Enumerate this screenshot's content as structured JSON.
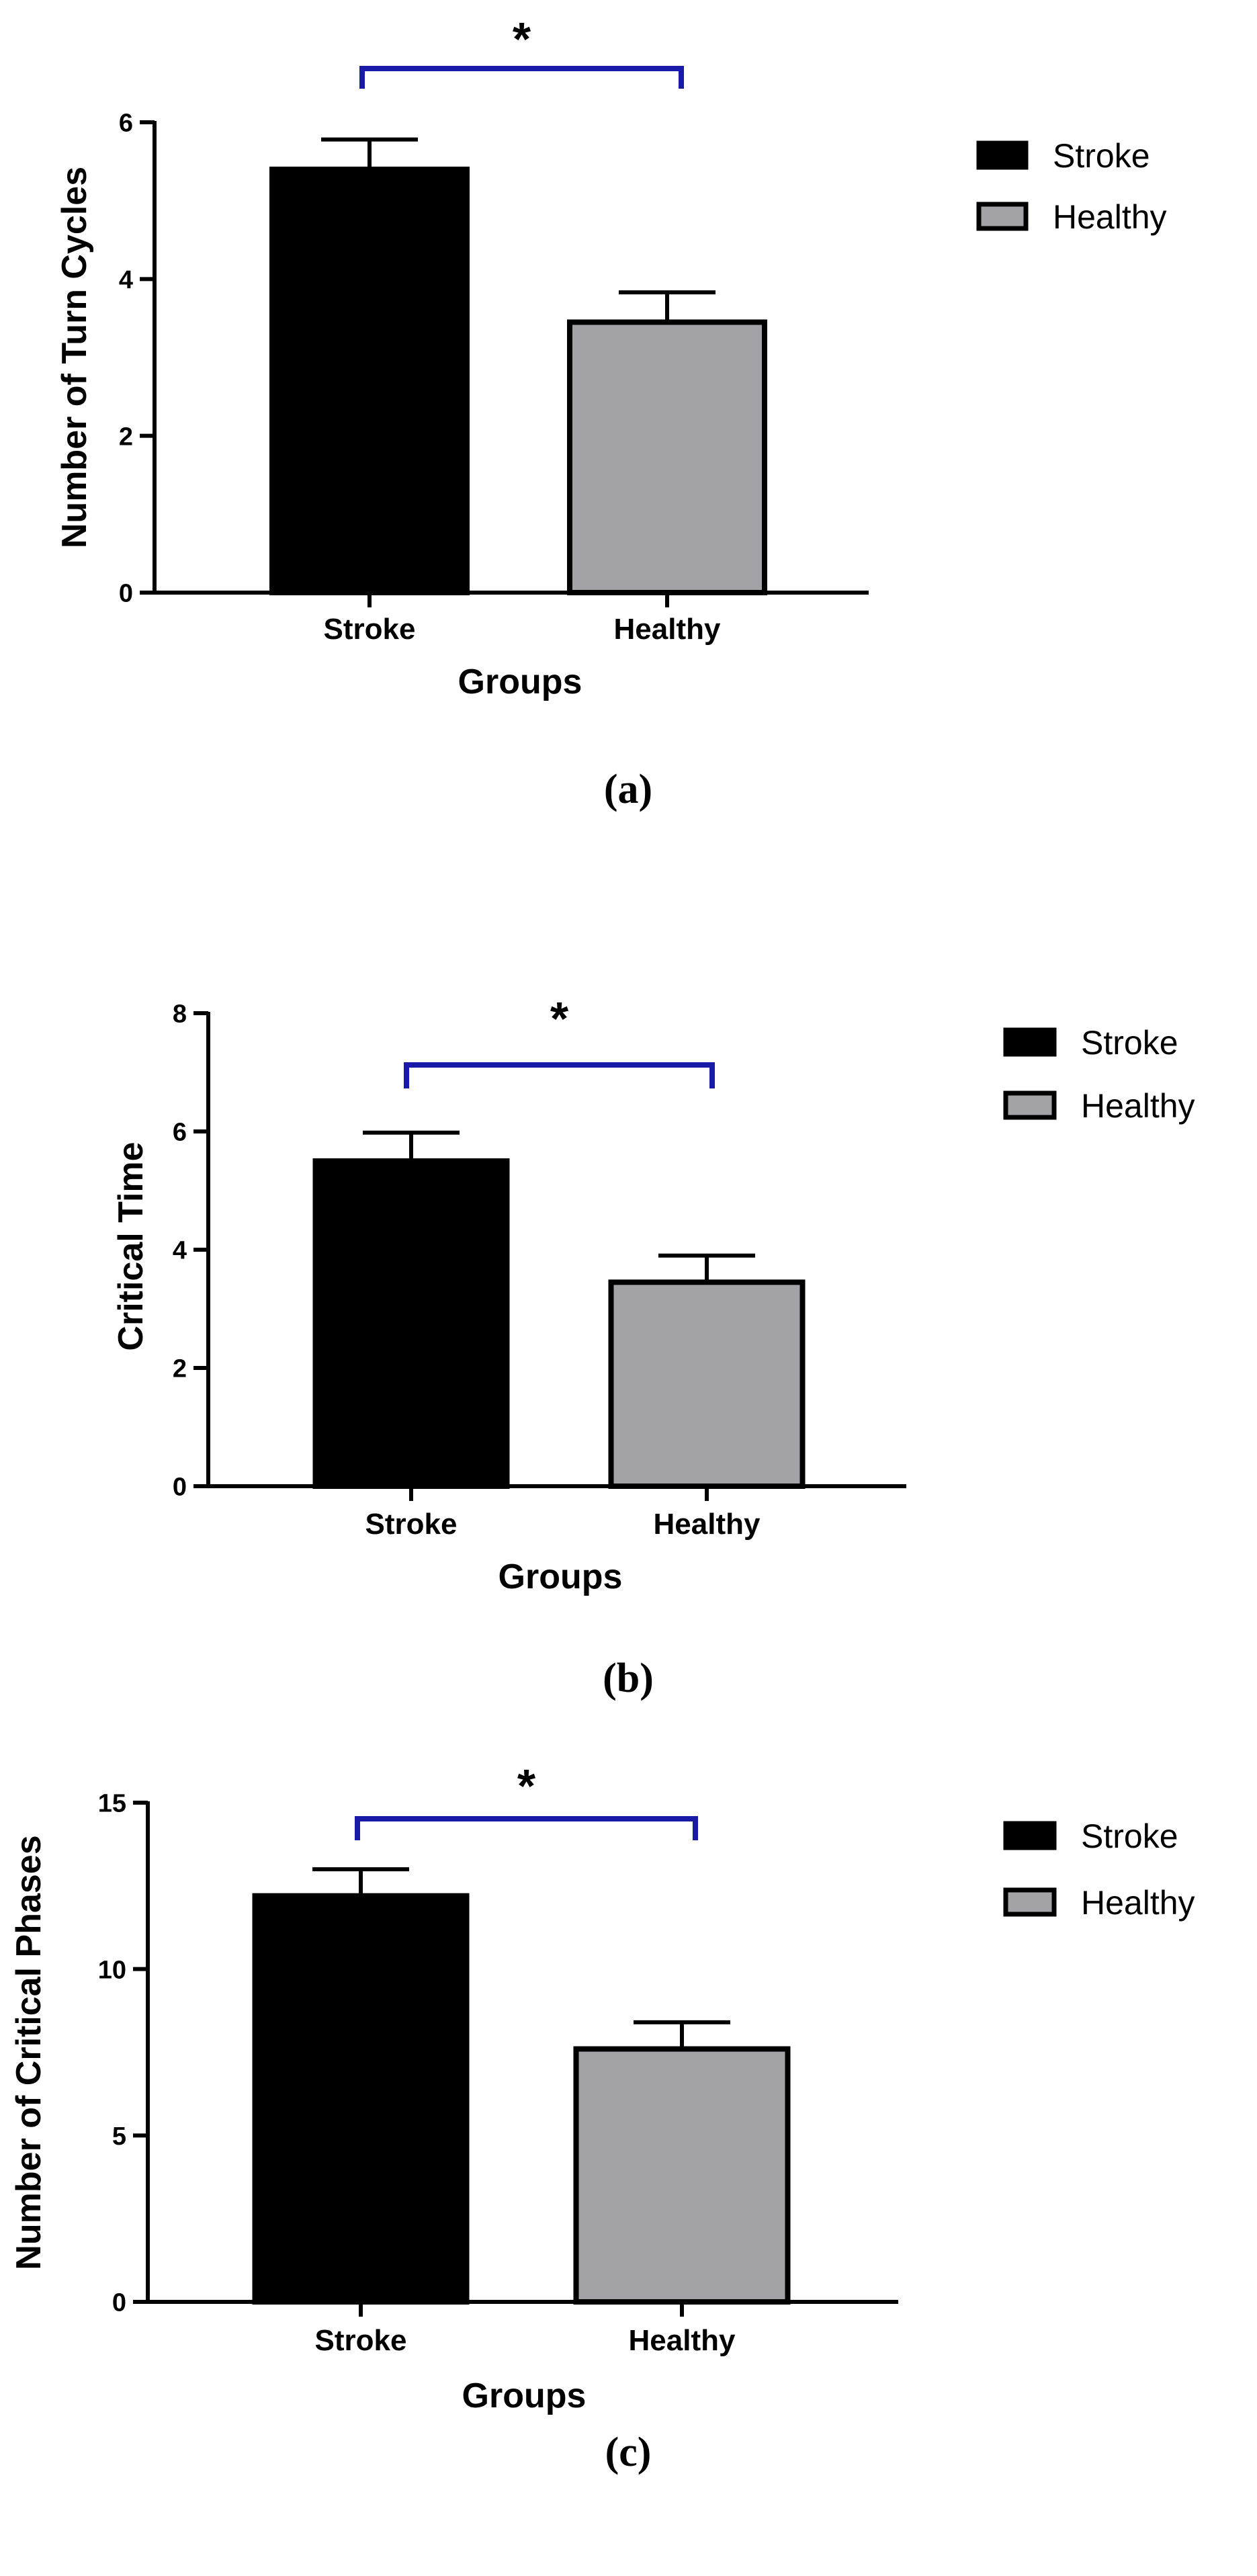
{
  "figure": {
    "panel_labels": [
      "(a)",
      "(b)",
      "(c)"
    ]
  },
  "chart_data": [
    {
      "type": "bar",
      "panel": "(a)",
      "categories": [
        "Stroke",
        "Healthy"
      ],
      "values": [
        5.4,
        3.45
      ],
      "errors": [
        0.38,
        0.38
      ],
      "xlabel": "Groups",
      "ylabel": "Number of Turn Cycles",
      "ylim": [
        0,
        6
      ],
      "yticks": [
        0,
        2,
        4,
        6
      ],
      "legend": {
        "position": "top-right",
        "entries": [
          "Stroke",
          "Healthy"
        ]
      },
      "significance": {
        "between": [
          "Stroke",
          "Healthy"
        ],
        "label": "*"
      },
      "colors": {
        "Stroke": "#000000",
        "Healthy": "#a3a2a7",
        "bracket": "#1a1aa8"
      }
    },
    {
      "type": "bar",
      "panel": "(b)",
      "categories": [
        "Stroke",
        "Healthy"
      ],
      "values": [
        5.5,
        3.45
      ],
      "errors": [
        0.48,
        0.45
      ],
      "xlabel": "Groups",
      "ylabel": "Critical Time",
      "ylim": [
        0,
        8
      ],
      "yticks": [
        0,
        2,
        4,
        6,
        8
      ],
      "legend": {
        "position": "top-right",
        "entries": [
          "Stroke",
          "Healthy"
        ]
      },
      "significance": {
        "between": [
          "Stroke",
          "Healthy"
        ],
        "label": "*"
      },
      "colors": {
        "Stroke": "#000000",
        "Healthy": "#a3a2a7",
        "bracket": "#1a1aa8"
      }
    },
    {
      "type": "bar",
      "panel": "(c)",
      "categories": [
        "Stroke",
        "Healthy"
      ],
      "values": [
        12.2,
        7.6
      ],
      "errors": [
        0.8,
        0.8
      ],
      "xlabel": "Groups",
      "ylabel": "Number of Critical Phases",
      "ylim": [
        0,
        15
      ],
      "yticks": [
        0,
        5,
        10,
        15
      ],
      "legend": {
        "position": "top-right",
        "entries": [
          "Stroke",
          "Healthy"
        ]
      },
      "significance": {
        "between": [
          "Stroke",
          "Healthy"
        ],
        "label": "*"
      },
      "colors": {
        "Stroke": "#000000",
        "Healthy": "#a3a2a7",
        "bracket": "#1a1aa8"
      }
    }
  ]
}
